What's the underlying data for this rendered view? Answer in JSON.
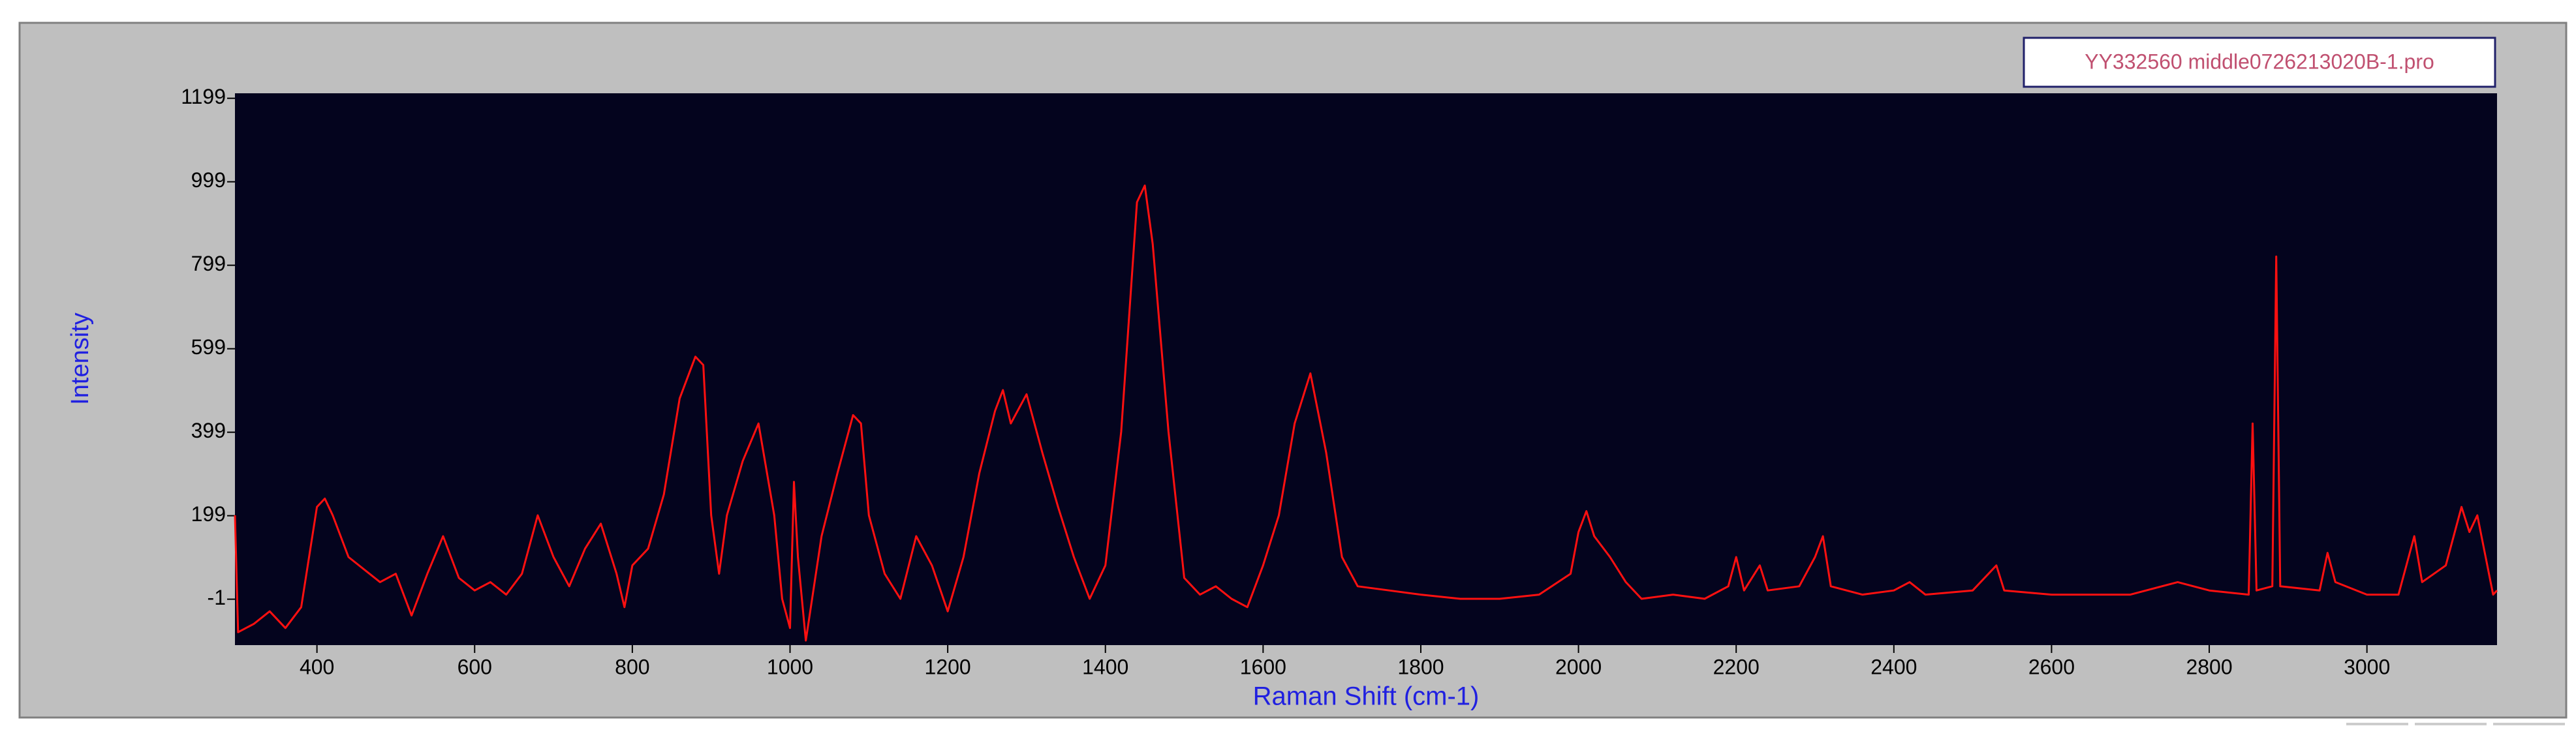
{
  "chart_data": {
    "type": "line",
    "xlabel": "Raman Shift (cm-1)",
    "ylabel": "Intensity",
    "x": [
      296,
      300,
      320,
      340,
      360,
      380,
      400,
      410,
      420,
      440,
      460,
      480,
      500,
      520,
      540,
      560,
      580,
      600,
      620,
      640,
      660,
      680,
      700,
      720,
      740,
      760,
      780,
      790,
      800,
      820,
      840,
      860,
      880,
      890,
      900,
      910,
      920,
      940,
      960,
      980,
      990,
      1000,
      1005,
      1010,
      1020,
      1040,
      1060,
      1080,
      1090,
      1100,
      1120,
      1140,
      1160,
      1180,
      1200,
      1220,
      1240,
      1260,
      1270,
      1280,
      1300,
      1320,
      1340,
      1360,
      1380,
      1400,
      1420,
      1440,
      1450,
      1460,
      1480,
      1500,
      1520,
      1540,
      1560,
      1580,
      1600,
      1620,
      1640,
      1660,
      1680,
      1700,
      1720,
      1760,
      1800,
      1850,
      1900,
      1950,
      1990,
      2000,
      2010,
      2020,
      2040,
      2060,
      2080,
      2120,
      2160,
      2190,
      2200,
      2210,
      2230,
      2240,
      2280,
      2300,
      2310,
      2320,
      2360,
      2400,
      2420,
      2440,
      2500,
      2530,
      2540,
      2600,
      2700,
      2760,
      2800,
      2850,
      2855,
      2860,
      2880,
      2885,
      2890,
      2940,
      2950,
      2960,
      3000,
      3040,
      3060,
      3070,
      3100,
      3120,
      3130,
      3140,
      3160,
      3165
    ],
    "series": [
      {
        "name": "YY332560 middle0726213020B-1.pro",
        "color": "#ff1010",
        "values": [
          200,
          -80,
          -60,
          -30,
          -70,
          -20,
          220,
          240,
          200,
          100,
          70,
          40,
          60,
          -40,
          60,
          150,
          50,
          20,
          40,
          10,
          60,
          200,
          100,
          30,
          120,
          180,
          60,
          -20,
          80,
          120,
          250,
          480,
          580,
          560,
          200,
          60,
          200,
          330,
          420,
          200,
          0,
          -70,
          280,
          100,
          -100,
          150,
          300,
          440,
          420,
          200,
          60,
          0,
          150,
          80,
          -30,
          100,
          300,
          450,
          500,
          420,
          490,
          350,
          220,
          100,
          0,
          80,
          400,
          950,
          990,
          850,
          400,
          50,
          10,
          30,
          0,
          -20,
          80,
          200,
          420,
          540,
          350,
          100,
          30,
          20,
          10,
          0,
          0,
          10,
          60,
          160,
          210,
          150,
          100,
          40,
          0,
          10,
          0,
          30,
          100,
          20,
          80,
          20,
          30,
          100,
          150,
          30,
          10,
          20,
          40,
          10,
          20,
          80,
          20,
          10,
          10,
          40,
          20,
          10,
          420,
          20,
          30,
          820,
          30,
          20,
          110,
          40,
          10,
          10,
          150,
          40,
          80,
          220,
          160,
          200,
          10,
          20
        ]
      }
    ],
    "xlim": [
      296,
      3165
    ],
    "xticks": [
      400,
      600,
      800,
      1000,
      1200,
      1400,
      1600,
      1800,
      2000,
      2200,
      2400,
      2600,
      2800,
      3000
    ],
    "ylim": [
      -111,
      1211
    ],
    "yticks": [
      -1,
      199,
      399,
      599,
      799,
      999,
      1199
    ],
    "grid": false
  }
}
